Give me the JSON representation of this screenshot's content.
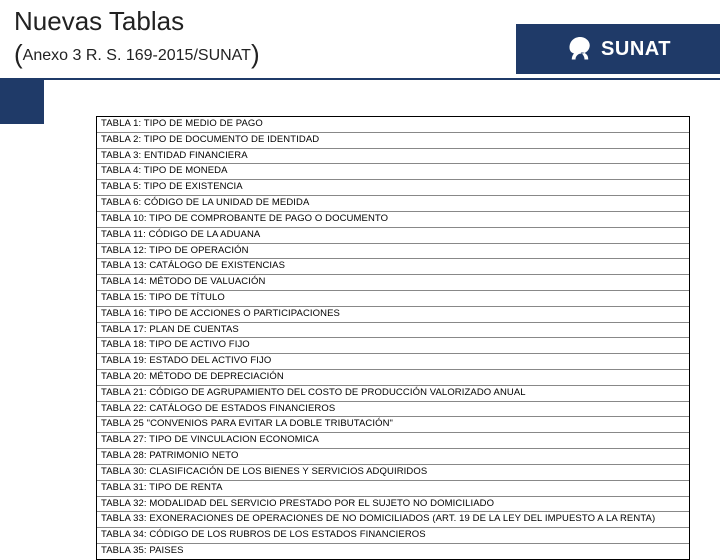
{
  "header": {
    "title": "Nuevas Tablas",
    "subtitle_inner": "Anexo 3 R. S. 169-2015/SUNAT",
    "logo_text": "SUNAT"
  },
  "colors": {
    "brand": "#1f3a68",
    "border": "#000000",
    "row_border": "#888888",
    "text": "#000000",
    "background": "#ffffff"
  },
  "table": {
    "rows": [
      "TABLA 1: TIPO DE MEDIO DE PAGO",
      "TABLA 2: TIPO DE DOCUMENTO DE IDENTIDAD",
      "TABLA 3: ENTIDAD FINANCIERA",
      "TABLA 4: TIPO DE MONEDA",
      "TABLA 5: TIPO DE EXISTENCIA",
      "TABLA 6: CÓDIGO DE LA UNIDAD DE MEDIDA",
      "TABLA 10: TIPO DE COMPROBANTE DE PAGO O DOCUMENTO",
      "TABLA 11: CÓDIGO DE LA ADUANA",
      "TABLA 12: TIPO DE OPERACIÓN",
      "TABLA 13: CATÁLOGO DE EXISTENCIAS",
      "TABLA 14: MÉTODO DE VALUACIÓN",
      "TABLA 15: TIPO DE TÍTULO",
      "TABLA 16: TIPO DE ACCIONES O PARTICIPACIONES",
      "TABLA 17: PLAN DE CUENTAS",
      "TABLA 18: TIPO DE ACTIVO FIJO",
      "TABLA 19: ESTADO DEL ACTIVO FIJO",
      "TABLA 20: MÉTODO DE DEPRECIACIÓN",
      "TABLA 21: CÓDIGO DE AGRUPAMIENTO DEL COSTO DE PRODUCCIÓN VALORIZADO ANUAL",
      "TABLA 22: CATÁLOGO DE ESTADOS FINANCIEROS",
      "TABLA 25 \"CONVENIOS PARA EVITAR LA DOBLE TRIBUTACIÓN\"",
      "TABLA 27: TIPO DE VINCULACION ECONOMICA",
      "TABLA 28: PATRIMONIO NETO",
      "TABLA 30: CLASIFICACIÓN DE LOS BIENES Y SERVICIOS ADQUIRIDOS",
      "TABLA 31: TIPO DE RENTA",
      "TABLA 32: MODALIDAD DEL SERVICIO PRESTADO POR EL SUJETO NO DOMICILIADO",
      "TABLA 33: EXONERACIONES DE OPERACIONES DE NO DOMICILIADOS (ART. 19 DE LA LEY DEL IMPUESTO A LA RENTA)",
      "TABLA 34: CÓDIGO DE LOS RUBROS DE LOS ESTADOS FINANCIEROS",
      "TABLA 35: PAISES"
    ]
  }
}
